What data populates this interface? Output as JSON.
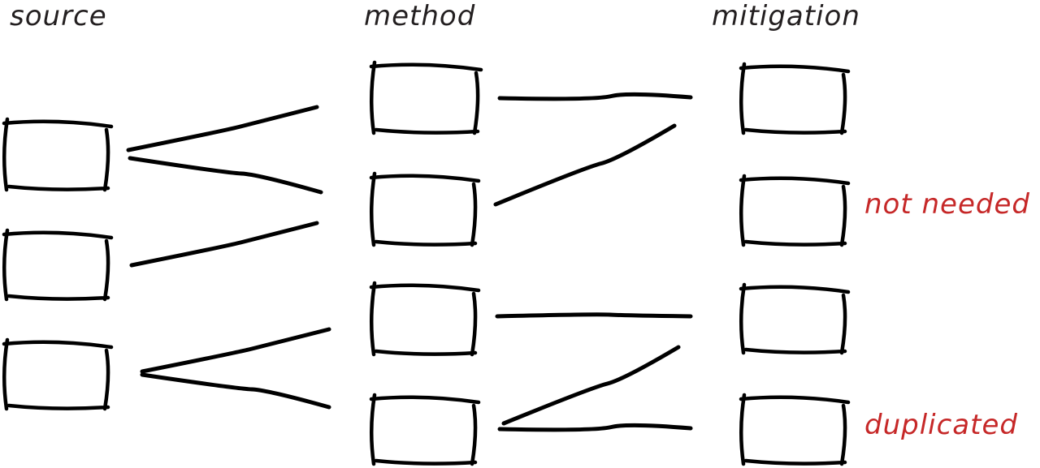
{
  "columns": {
    "source": "source",
    "method": "method",
    "mitigation": "mitigation"
  },
  "annotations": {
    "not_needed": "not needed",
    "duplicated": "duplicated"
  },
  "colors": {
    "stroke": "#000000",
    "annotation": "#c62828",
    "heading": "#231f20"
  }
}
